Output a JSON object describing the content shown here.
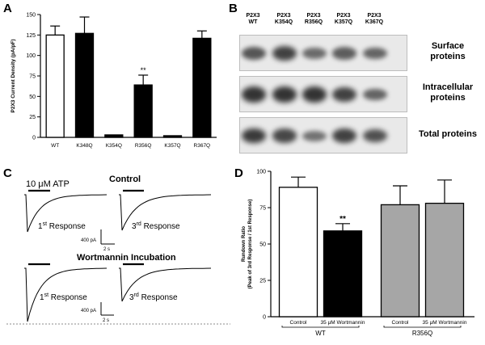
{
  "panels": {
    "a": {
      "label": "A"
    },
    "b": {
      "label": "B"
    },
    "c": {
      "label": "C"
    },
    "d": {
      "label": "D"
    }
  },
  "chart_data": [
    {
      "type": "bar",
      "panel": "A",
      "ylabel": "P2X3 Current Density (pA/pF)",
      "ylim": [
        0,
        150
      ],
      "yticks": [
        "0",
        "25",
        "50",
        "75",
        "100",
        "125",
        "150"
      ],
      "categories": [
        "WT",
        "K348Q",
        "K354Q",
        "R356Q",
        "K357Q",
        "R367Q"
      ],
      "values": [
        125,
        127,
        3,
        64,
        2,
        121
      ],
      "errors": [
        11,
        20,
        0,
        12,
        0,
        9
      ],
      "fills": [
        "#ffffff",
        "#000000",
        "#000000",
        "#000000",
        "#000000",
        "#000000"
      ],
      "annotations": [
        {
          "category": "R356Q",
          "text": "**"
        }
      ]
    },
    {
      "type": "bar",
      "panel": "D",
      "ylabel_lines": [
        "Rundown Ratio",
        "(Peak of 3rd Response / 1st Response)"
      ],
      "ylim": [
        0,
        100
      ],
      "yticks": [
        "0",
        "25",
        "50",
        "75",
        "100"
      ],
      "categories": [
        "Control",
        "35 μM Wortmannin",
        "Control",
        "35 μM Wortmannin"
      ],
      "groups": [
        {
          "label": "WT",
          "categories": [
            0,
            1
          ]
        },
        {
          "label": "R356Q",
          "categories": [
            2,
            3
          ]
        }
      ],
      "values": [
        89,
        59,
        77,
        78
      ],
      "errors": [
        7,
        5,
        13,
        16
      ],
      "fills": [
        "#ffffff",
        "#000000",
        "#a6a6a6",
        "#a6a6a6"
      ],
      "annotations": [
        {
          "category": 1,
          "text": "**"
        }
      ]
    }
  ],
  "blot": {
    "lanes": [
      [
        "P2X3",
        "WT"
      ],
      [
        "P2X3",
        "K354Q"
      ],
      [
        "P2X3",
        "R356Q"
      ],
      [
        "P2X3",
        "K357Q"
      ],
      [
        "P2X3",
        "K367Q"
      ]
    ],
    "rows": [
      {
        "label": [
          "Surface",
          "proteins"
        ],
        "intensity": [
          0.7,
          0.85,
          0.55,
          0.65,
          0.6
        ]
      },
      {
        "label": [
          "Intracellular",
          "proteins"
        ],
        "intensity": [
          0.95,
          0.95,
          0.95,
          0.85,
          0.6
        ]
      },
      {
        "label": [
          "Total proteins"
        ],
        "intensity": [
          0.9,
          0.8,
          0.5,
          0.85,
          0.75
        ]
      }
    ]
  },
  "traces": {
    "atp_label": "10 μM ATP",
    "control_title": "Control",
    "wortmannin_title": "Wortmannin Incubation",
    "first_response": [
      "1",
      "st",
      " Response"
    ],
    "third_response": [
      "3",
      "rd",
      " Response"
    ],
    "scale_current": "400 pA",
    "scale_time": "2 s",
    "peaks": {
      "control_first": 0.92,
      "control_third": 0.88,
      "wort_first": 1.0,
      "wort_third": 0.62
    }
  }
}
